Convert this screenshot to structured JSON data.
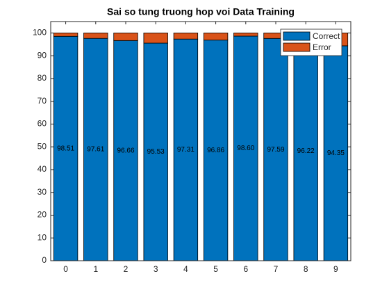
{
  "chart_data": {
    "type": "stacked_bar",
    "title": "Sai so tung truong hop voi Data Training",
    "categories": [
      "0",
      "1",
      "2",
      "3",
      "4",
      "5",
      "6",
      "7",
      "8",
      "9"
    ],
    "series": [
      {
        "name": "Correct",
        "color": "#0072BD",
        "values": [
          98.51,
          97.61,
          96.66,
          95.53,
          97.31,
          96.86,
          98.6,
          97.59,
          96.22,
          94.35
        ],
        "value_labels": [
          "98.51",
          "97.61",
          "96.66",
          "95.53",
          "97.31",
          "96.86",
          "98.60",
          "97.59",
          "96.22",
          "94.35"
        ]
      },
      {
        "name": "Error",
        "color": "#D95319",
        "values": [
          1.49,
          2.39,
          3.34,
          4.47,
          2.69,
          3.14,
          1.4,
          2.41,
          3.78,
          5.65
        ]
      }
    ],
    "ylim": [
      0,
      105
    ],
    "yticks": [
      0,
      10,
      20,
      30,
      40,
      50,
      60,
      70,
      80,
      90,
      100
    ],
    "legend": "northeast"
  }
}
